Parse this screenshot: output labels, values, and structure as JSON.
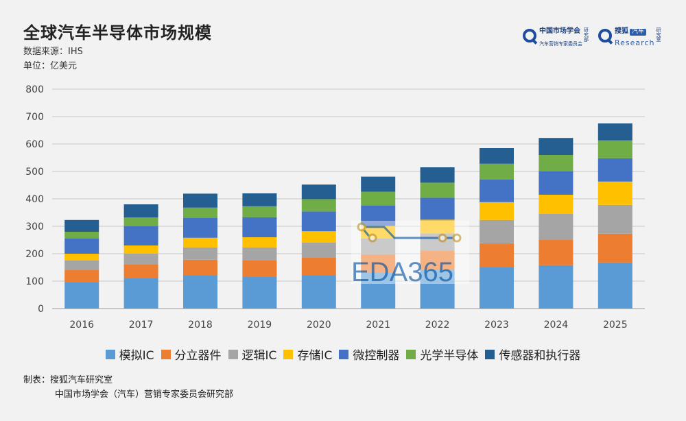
{
  "header": {
    "title": "全球汽车半导体市场规模",
    "source": "数据来源：IHS",
    "unit": "单位：亿美元"
  },
  "logos": {
    "left_main": "中国市场学会",
    "left_tag": "研究部",
    "left_small": "汽车营销专家委员会",
    "right_main": "搜狐",
    "right_tag": "汽车",
    "right_research": "Research",
    "right_side": "研究室"
  },
  "watermark": "EDA365",
  "footer": {
    "label": "制表：",
    "line1": "搜狐汽车研究室",
    "line2": "中国市场学会（汽车）营销专家委员会研究部"
  },
  "chart_data": {
    "type": "bar",
    "stacked": true,
    "title": "全球汽车半导体市场规模",
    "ylabel": "",
    "xlabel": "",
    "ylim": [
      0,
      800
    ],
    "yticks": [
      0,
      100,
      200,
      300,
      400,
      500,
      600,
      700,
      800
    ],
    "grid": true,
    "legend_position": "bottom",
    "categories": [
      "2016",
      "2017",
      "2018",
      "2019",
      "2020",
      "2021",
      "2022",
      "2023",
      "2024",
      "2025"
    ],
    "series": [
      {
        "name": "模拟IC",
        "color": "#5b9bd5",
        "values": [
          95,
          110,
          120,
          115,
          120,
          130,
          140,
          150,
          158,
          168
        ]
      },
      {
        "name": "分立器件",
        "color": "#ed7d31",
        "values": [
          45,
          50,
          58,
          60,
          65,
          68,
          72,
          88,
          92,
          105
        ]
      },
      {
        "name": "逻辑IC",
        "color": "#a5a5a5",
        "values": [
          35,
          40,
          45,
          48,
          55,
          58,
          62,
          85,
          95,
          105
        ]
      },
      {
        "name": "存储IC",
        "color": "#ffc000",
        "values": [
          25,
          30,
          35,
          37,
          42,
          45,
          50,
          65,
          70,
          85
        ]
      },
      {
        "name": "微控制器",
        "color": "#4472c4",
        "values": [
          55,
          70,
          72,
          73,
          72,
          75,
          80,
          82,
          85,
          85
        ]
      },
      {
        "name": "光学半导体",
        "color": "#70ad47",
        "values": [
          25,
          32,
          38,
          40,
          45,
          50,
          55,
          58,
          60,
          65
        ]
      },
      {
        "name": "传感器和执行器",
        "color": "#255e91",
        "values": [
          43,
          48,
          51,
          47,
          53,
          55,
          56,
          57,
          62,
          62
        ]
      }
    ]
  }
}
